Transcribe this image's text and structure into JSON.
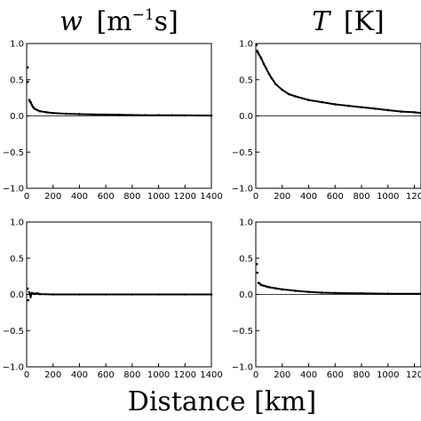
{
  "chart_data": {
    "xlabel": "Distance [km]",
    "panels": [
      {
        "type": "scatter",
        "title": {
          "var": "w",
          "unit": "m",
          "unit_sup": "−1",
          "unit_tail": "s"
        },
        "xlim": [
          0,
          1400
        ],
        "ylim": [
          -1.0,
          1.0
        ],
        "xticks": [
          "0",
          "200",
          "400",
          "600",
          "800",
          "1000",
          "1200",
          "1400"
        ],
        "yticks": [
          "−1.0",
          "−0.5",
          "0.0",
          "0.5",
          "1.0"
        ],
        "points": [
          [
            8,
            0.67
          ],
          [
            8,
            0.47
          ],
          [
            20,
            0.22
          ],
          [
            25,
            0.2
          ],
          [
            30,
            0.19
          ],
          [
            40,
            0.15
          ],
          [
            50,
            0.12
          ],
          [
            60,
            0.1
          ],
          [
            80,
            0.08
          ],
          [
            100,
            0.065
          ],
          [
            150,
            0.05
          ],
          [
            200,
            0.04
          ],
          [
            300,
            0.03
          ],
          [
            400,
            0.025
          ],
          [
            500,
            0.02
          ],
          [
            600,
            0.018
          ],
          [
            700,
            0.015
          ],
          [
            800,
            0.012
          ],
          [
            900,
            0.01
          ],
          [
            1000,
            0.01
          ],
          [
            1100,
            0.008
          ],
          [
            1200,
            0.007
          ],
          [
            1300,
            0.006
          ],
          [
            1400,
            0.005
          ]
        ]
      },
      {
        "type": "scatter",
        "title": {
          "var": "T",
          "unit": "K"
        },
        "xlim": [
          0,
          1250
        ],
        "ylim": [
          -1.0,
          1.0
        ],
        "xticks": [
          "0",
          "200",
          "400",
          "600",
          "800",
          "1000",
          "120"
        ],
        "yticks": [
          "−1.0",
          "−0.5",
          "0.0",
          "0.5",
          "1.0"
        ],
        "points": [
          [
            5,
            0.98
          ],
          [
            10,
            0.9
          ],
          [
            15,
            0.88
          ],
          [
            20,
            0.86
          ],
          [
            40,
            0.8
          ],
          [
            60,
            0.72
          ],
          [
            80,
            0.65
          ],
          [
            100,
            0.58
          ],
          [
            120,
            0.52
          ],
          [
            150,
            0.44
          ],
          [
            200,
            0.36
          ],
          [
            250,
            0.3
          ],
          [
            300,
            0.27
          ],
          [
            400,
            0.22
          ],
          [
            500,
            0.19
          ],
          [
            600,
            0.16
          ],
          [
            700,
            0.14
          ],
          [
            800,
            0.12
          ],
          [
            900,
            0.1
          ],
          [
            1000,
            0.08
          ],
          [
            1100,
            0.06
          ],
          [
            1200,
            0.05
          ],
          [
            1250,
            0.04
          ]
        ]
      },
      {
        "type": "scatter",
        "title": null,
        "xlim": [
          0,
          1400
        ],
        "ylim": [
          -1.0,
          1.0
        ],
        "xticks": [
          "0",
          "200",
          "400",
          "600",
          "800",
          "1000",
          "1200",
          "1400"
        ],
        "yticks": [
          "−1.0",
          "−0.5",
          "0.0",
          "0.5",
          "1.0"
        ],
        "points": [
          [
            8,
            0.08
          ],
          [
            12,
            -0.08
          ],
          [
            20,
            0.03
          ],
          [
            30,
            -0.03
          ],
          [
            40,
            0.02
          ],
          [
            60,
            0.01
          ],
          [
            80,
            0.015
          ],
          [
            100,
            0.005
          ],
          [
            200,
            0.0
          ],
          [
            400,
            0.0
          ],
          [
            600,
            0.0
          ],
          [
            800,
            0.0
          ],
          [
            1000,
            0.0
          ],
          [
            1200,
            0.0
          ],
          [
            1400,
            0.0
          ]
        ]
      },
      {
        "type": "scatter",
        "title": null,
        "xlim": [
          0,
          1250
        ],
        "ylim": [
          -1.0,
          1.0
        ],
        "xticks": [
          "0",
          "200",
          "400",
          "600",
          "800",
          "1000",
          "120"
        ],
        "yticks": [
          "−1.0",
          "−0.5",
          "0.0",
          "0.5",
          "1.0"
        ],
        "points": [
          [
            8,
            0.42
          ],
          [
            12,
            0.3
          ],
          [
            20,
            0.16
          ],
          [
            30,
            0.15
          ],
          [
            40,
            0.13
          ],
          [
            60,
            0.12
          ],
          [
            80,
            0.11
          ],
          [
            100,
            0.1
          ],
          [
            150,
            0.085
          ],
          [
            200,
            0.07
          ],
          [
            300,
            0.05
          ],
          [
            400,
            0.035
          ],
          [
            500,
            0.025
          ],
          [
            600,
            0.02
          ],
          [
            800,
            0.015
          ],
          [
            1000,
            0.01
          ],
          [
            1250,
            0.008
          ]
        ]
      }
    ]
  }
}
